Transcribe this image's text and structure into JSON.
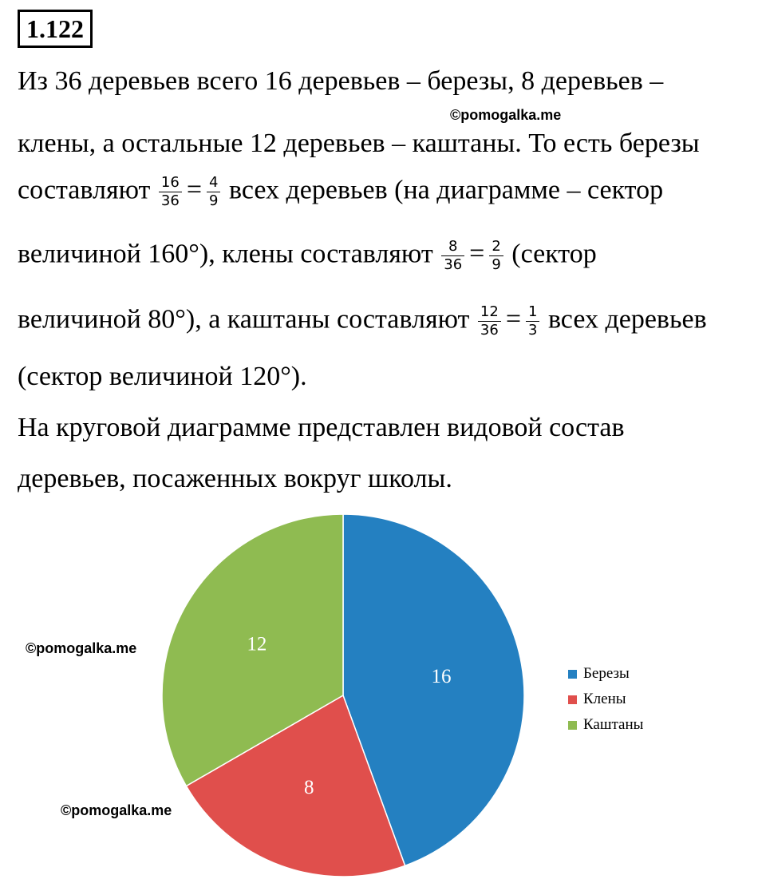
{
  "problem_number": "1.122",
  "text": {
    "l1": "Из 36 деревьев всего 16 деревьев – березы, 8 деревьев –",
    "l2": "клены, а остальные 12 деревьев – каштаны. То есть березы",
    "l3_a": "составляют",
    "l3_f1": [
      "16",
      "36"
    ],
    "l3_eq": "=",
    "l3_f2": [
      "4",
      "9"
    ],
    "l3_b": "всех деревьев (на диаграмме – сектор",
    "l4_a": "величиной 160°), клены составляют",
    "l4_f1": [
      "8",
      "36"
    ],
    "l4_eq": "=",
    "l4_f2": [
      "2",
      "9"
    ],
    "l4_b": "(сектор",
    "l5_a": "величиной 80°), а каштаны составляют",
    "l5_f1": [
      "12",
      "36"
    ],
    "l5_eq": "=",
    "l5_f2": [
      "1",
      "3"
    ],
    "l5_b": "всех деревьев",
    "l6": "(сектор величиной 120°).",
    "l7": "На круговой диаграмме представлен видовой состав",
    "l8": "деревьев, посаженных вокруг школы."
  },
  "watermarks": [
    "©pomogalka.me",
    "©pomogalka.me",
    "©pomogalka.me"
  ],
  "chart_data": {
    "type": "pie",
    "categories": [
      "Березы",
      "Клены",
      "Каштаны"
    ],
    "values": [
      16,
      8,
      12
    ],
    "colors": [
      "#2480c1",
      "#e04f4c",
      "#8fbb51"
    ],
    "data_labels": [
      "16",
      "8",
      "12"
    ],
    "legend_position": "right"
  }
}
